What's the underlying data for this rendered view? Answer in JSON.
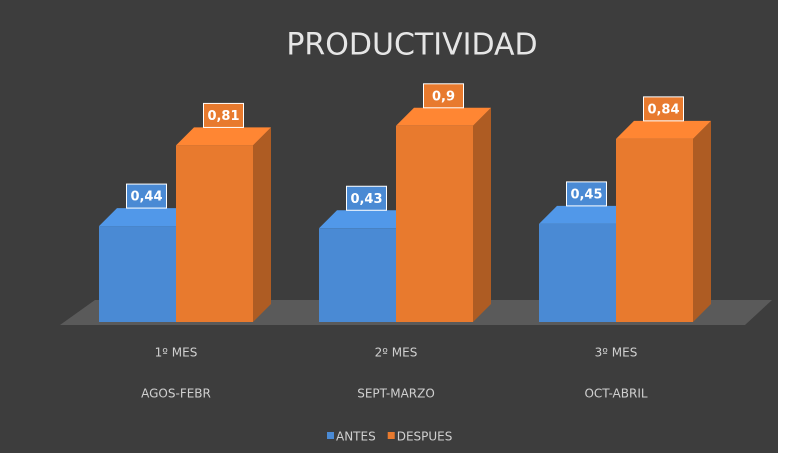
{
  "chart_data": {
    "type": "bar3d",
    "title": "PRODUCTIVIDAD",
    "categories": [
      [
        "1º MES",
        "AGOS-FEBR"
      ],
      [
        "2º MES",
        "SEPT-MARZO"
      ],
      [
        "3º MES",
        "OCT-ABRIL"
      ]
    ],
    "series": [
      {
        "name": "ANTES",
        "color": "#4a8ad4",
        "values": [
          0.44,
          0.43,
          0.45
        ],
        "value_labels": [
          "0,44",
          "0,43",
          "0,45"
        ]
      },
      {
        "name": "DESPUES",
        "color": "#e87a2e",
        "values": [
          0.81,
          0.9,
          0.84
        ],
        "value_labels": [
          "0,81",
          "0,9",
          "0,84"
        ]
      }
    ],
    "legend": "bottom"
  }
}
